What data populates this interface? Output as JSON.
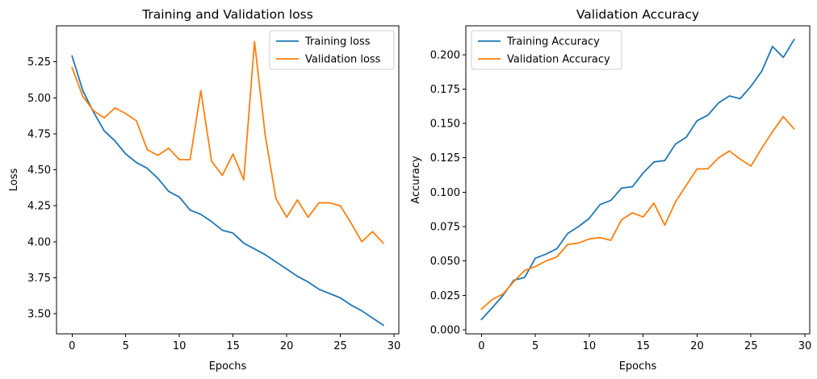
{
  "chart_data": [
    {
      "type": "line",
      "title": "Training and Validation loss",
      "xlabel": "Epochs",
      "ylabel": "Loss",
      "xlim": [
        -1.45,
        30.45
      ],
      "ylim": [
        3.36,
        5.5
      ],
      "xticks": [
        0,
        5,
        10,
        15,
        20,
        25,
        30
      ],
      "xtick_labels": [
        "0",
        "5",
        "10",
        "15",
        "20",
        "25",
        "30"
      ],
      "yticks": [
        3.5,
        3.75,
        4.0,
        4.25,
        4.5,
        4.75,
        5.0,
        5.25
      ],
      "ytick_labels": [
        "3.50",
        "3.75",
        "4.00",
        "4.25",
        "4.50",
        "4.75",
        "5.00",
        "5.25"
      ],
      "legend_position": "top-right",
      "grid": false,
      "x": [
        0,
        1,
        2,
        3,
        4,
        5,
        6,
        7,
        8,
        9,
        10,
        11,
        12,
        13,
        14,
        15,
        16,
        17,
        18,
        19,
        20,
        21,
        22,
        23,
        24,
        25,
        26,
        27,
        28,
        29
      ],
      "series": [
        {
          "name": "Training loss",
          "color": "#1f77b4",
          "values": [
            5.29,
            5.05,
            4.9,
            4.77,
            4.7,
            4.61,
            4.55,
            4.51,
            4.44,
            4.35,
            4.31,
            4.22,
            4.19,
            4.14,
            4.08,
            4.06,
            3.99,
            3.95,
            3.91,
            3.86,
            3.81,
            3.76,
            3.72,
            3.67,
            3.64,
            3.61,
            3.56,
            3.52,
            3.47,
            3.42
          ]
        },
        {
          "name": "Validation loss",
          "color": "#ff7f0e",
          "values": [
            5.21,
            5.01,
            4.91,
            4.86,
            4.93,
            4.89,
            4.84,
            4.64,
            4.6,
            4.65,
            4.57,
            4.57,
            5.05,
            4.56,
            4.46,
            4.61,
            4.43,
            5.39,
            4.74,
            4.3,
            4.17,
            4.29,
            4.17,
            4.27,
            4.27,
            4.25,
            4.13,
            4.0,
            4.07,
            3.99
          ]
        }
      ]
    },
    {
      "type": "line",
      "title": "Validation Accuracy",
      "xlabel": "Epochs",
      "ylabel": "Accuracy",
      "xlim": [
        -1.45,
        30.45
      ],
      "ylim": [
        -0.003,
        0.221
      ],
      "xticks": [
        0,
        5,
        10,
        15,
        20,
        25,
        30
      ],
      "xtick_labels": [
        "0",
        "5",
        "10",
        "15",
        "20",
        "25",
        "30"
      ],
      "yticks": [
        0.0,
        0.025,
        0.05,
        0.075,
        0.1,
        0.125,
        0.15,
        0.175,
        0.2
      ],
      "ytick_labels": [
        "0.000",
        "0.025",
        "0.050",
        "0.075",
        "0.100",
        "0.125",
        "0.150",
        "0.175",
        "0.200"
      ],
      "legend_position": "top-left",
      "grid": false,
      "x": [
        0,
        1,
        2,
        3,
        4,
        5,
        6,
        7,
        8,
        9,
        10,
        11,
        12,
        13,
        14,
        15,
        16,
        17,
        18,
        19,
        20,
        21,
        22,
        23,
        24,
        25,
        26,
        27,
        28,
        29
      ],
      "series": [
        {
          "name": "Training Accuracy",
          "color": "#1f77b4",
          "values": [
            0.0075,
            0.016,
            0.025,
            0.036,
            0.038,
            0.052,
            0.055,
            0.059,
            0.07,
            0.075,
            0.081,
            0.091,
            0.094,
            0.103,
            0.104,
            0.114,
            0.122,
            0.123,
            0.135,
            0.14,
            0.152,
            0.156,
            0.165,
            0.17,
            0.168,
            0.177,
            0.188,
            0.206,
            0.198,
            0.211
          ]
        },
        {
          "name": "Validation Accuracy",
          "color": "#ff7f0e",
          "values": [
            0.015,
            0.022,
            0.026,
            0.035,
            0.043,
            0.046,
            0.05,
            0.053,
            0.062,
            0.063,
            0.066,
            0.067,
            0.065,
            0.08,
            0.085,
            0.082,
            0.092,
            0.076,
            0.093,
            0.105,
            0.117,
            0.117,
            0.125,
            0.13,
            0.124,
            0.119,
            0.132,
            0.144,
            0.155,
            0.146
          ]
        }
      ]
    }
  ]
}
